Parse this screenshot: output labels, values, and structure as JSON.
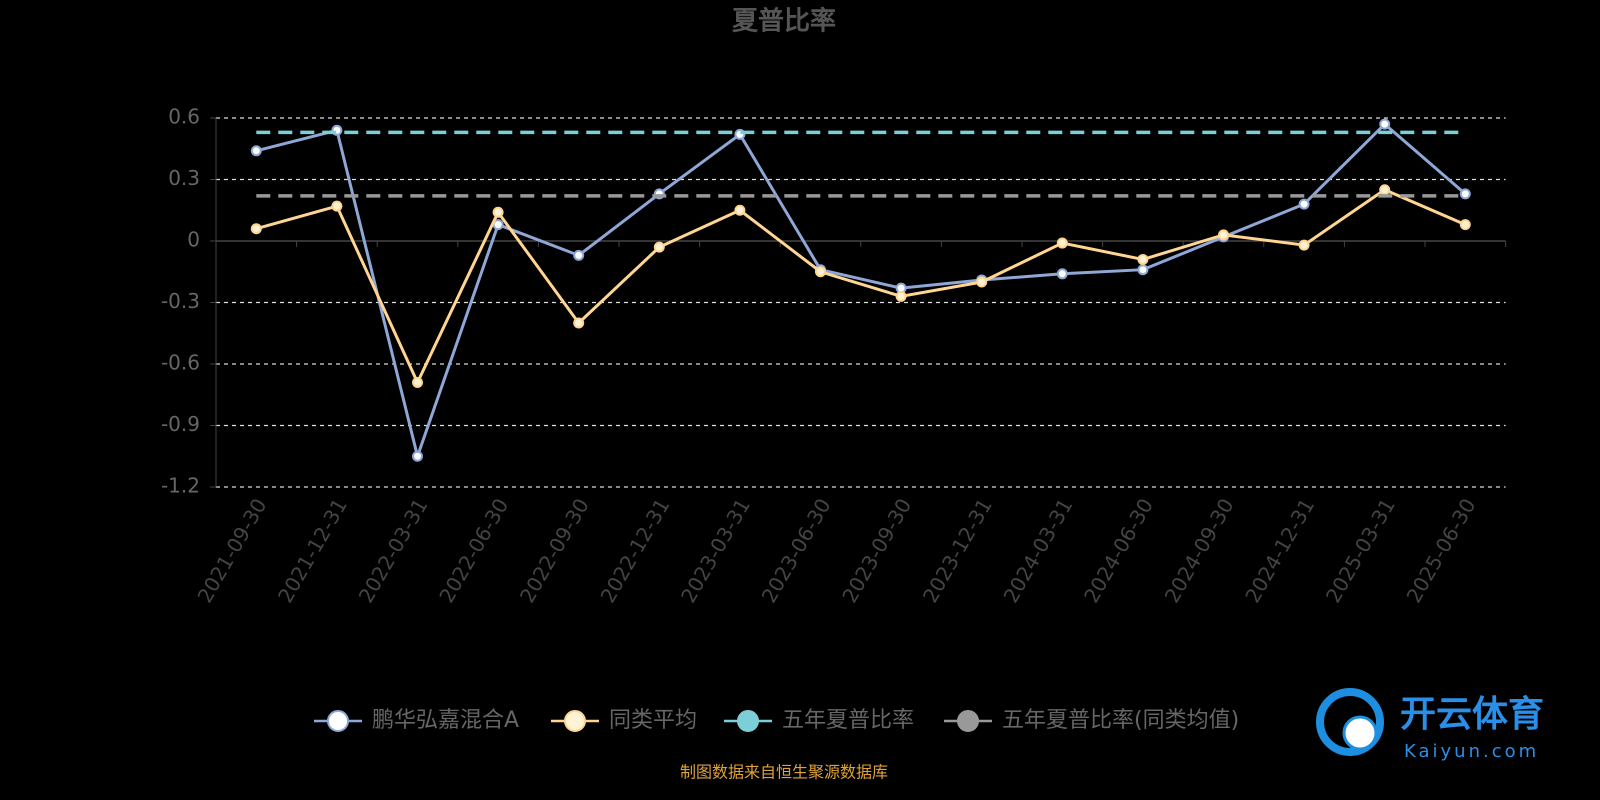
{
  "chart_data": {
    "type": "line",
    "title": "夏普比率",
    "categories": [
      "2021-09-30",
      "2021-12-31",
      "2022-03-31",
      "2022-06-30",
      "2022-09-30",
      "2022-12-31",
      "2023-03-31",
      "2023-06-30",
      "2023-09-30",
      "2023-12-31",
      "2024-03-31",
      "2024-06-30",
      "2024-09-30",
      "2024-12-31",
      "2025-03-31",
      "2025-06-30"
    ],
    "series": [
      {
        "name": "鹏华弘嘉混合A",
        "color": "#8ea7d6",
        "values": [
          0.44,
          0.54,
          -1.05,
          0.08,
          -0.07,
          0.23,
          0.52,
          -0.14,
          -0.23,
          -0.19,
          -0.16,
          -0.14,
          0.02,
          0.18,
          0.57,
          0.23
        ]
      },
      {
        "name": "同类平均",
        "color": "#ffd591",
        "values": [
          0.06,
          0.17,
          -0.69,
          0.14,
          -0.4,
          -0.03,
          0.15,
          -0.15,
          -0.27,
          -0.2,
          -0.01,
          -0.09,
          0.03,
          -0.02,
          0.25,
          0.08
        ]
      },
      {
        "name": "五年夏普比率",
        "color": "#7ccfd6",
        "value": 0.53
      },
      {
        "name": "五年夏普比率(同类均值)",
        "color": "#999999",
        "value": 0.22
      }
    ],
    "ylim": [
      -1.2,
      0.6
    ],
    "yticks": [
      -1.2,
      -0.9,
      -0.6,
      -0.3,
      0,
      0.3,
      0.6
    ],
    "grid": true,
    "source": "制图数据来自恒生聚源数据库",
    "watermark": {
      "brand": "开云体育",
      "site": "Kaiyun.com"
    }
  }
}
